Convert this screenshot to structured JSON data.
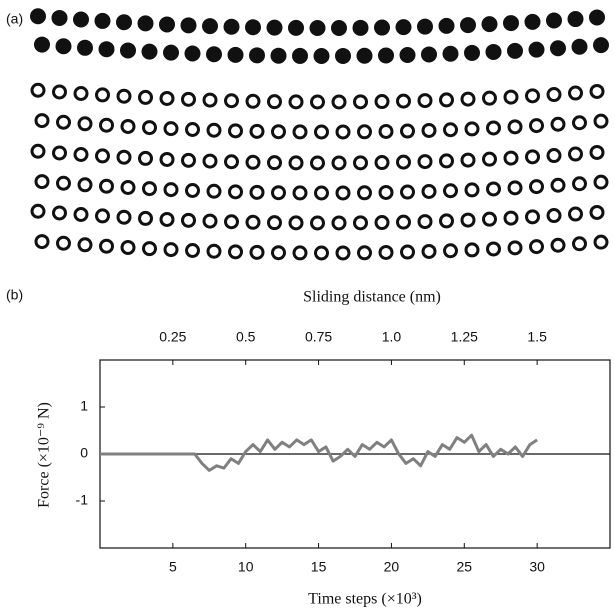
{
  "figure": {
    "label_a": "(a)",
    "label_b": "(b)"
  },
  "chart_data": {
    "type": "line",
    "top_axis_label": "Sliding distance (nm)",
    "x_label": "Time steps (×10³)",
    "y_label": "Force (×10⁻⁹ N)",
    "xlim": [
      0,
      35
    ],
    "xticks": [
      5,
      10,
      15,
      20,
      25,
      30
    ],
    "x2lim": [
      0,
      1.75
    ],
    "x2ticks": [
      0.25,
      0.5,
      0.75,
      {
        "value": 1,
        "label": "1.0"
      },
      1.25,
      1.5
    ],
    "ylim": [
      -2,
      2
    ],
    "yticks": [
      1,
      0,
      -1
    ],
    "color": "#808080",
    "x": [
      0,
      6.5,
      7,
      7.5,
      8,
      8.5,
      9,
      9.5,
      10,
      10.5,
      11,
      11.5,
      12,
      12.5,
      13,
      13.5,
      14,
      14.5,
      15,
      15.5,
      16,
      16.5,
      17,
      17.5,
      18,
      18.5,
      19,
      19.5,
      20,
      20.5,
      21,
      21.5,
      22,
      22.5,
      23,
      23.5,
      24,
      24.5,
      25,
      25.5,
      26,
      26.5,
      27,
      27.5,
      28,
      28.5,
      29,
      29.5,
      30
    ],
    "values": [
      0,
      0,
      -0.2,
      -0.35,
      -0.25,
      -0.3,
      -0.1,
      -0.2,
      0.05,
      0.2,
      0.05,
      0.3,
      0.1,
      0.25,
      0.15,
      0.3,
      0.2,
      0.3,
      0.05,
      0.15,
      -0.15,
      -0.05,
      0.1,
      -0.05,
      0.2,
      0.1,
      0.25,
      0.15,
      0.3,
      0.0,
      -0.2,
      -0.1,
      -0.25,
      0.05,
      -0.05,
      0.2,
      0.1,
      0.35,
      0.25,
      0.4,
      0.05,
      0.2,
      -0.05,
      0.1,
      0.0,
      0.15,
      -0.05,
      0.2,
      0.3
    ]
  }
}
